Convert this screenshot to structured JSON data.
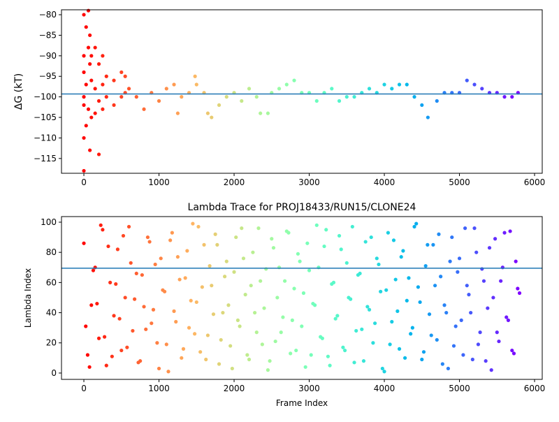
{
  "chart_data": [
    {
      "type": "scatter",
      "ylabel": "ΔG (kT)",
      "colormap": "rainbow_r",
      "hline": -99.3,
      "hline_color": "#1f77b4",
      "xlim": [
        -298,
        6102
      ],
      "ylim": [
        -118.6,
        -78.8
      ],
      "xticks": [
        0,
        1000,
        2000,
        3000,
        4000,
        5000,
        6000
      ],
      "yticks": [
        {
          "value": -80,
          "label": "−80"
        },
        {
          "value": -85,
          "label": "−85"
        },
        {
          "value": -90,
          "label": "−90"
        },
        {
          "value": -95,
          "label": "−95"
        },
        {
          "value": -100,
          "label": "−100"
        },
        {
          "value": -105,
          "label": "−105"
        },
        {
          "value": -110,
          "label": "−110"
        },
        {
          "value": -115,
          "label": "−115"
        }
      ],
      "series": [
        {
          "x": [
            0,
            0,
            0,
            0,
            0,
            0,
            0,
            30,
            30,
            30,
            60,
            60,
            60,
            80,
            80,
            80,
            100,
            100,
            100,
            150,
            150,
            150,
            200,
            200,
            200,
            250,
            250,
            250,
            300,
            300,
            400,
            400,
            500,
            500,
            550,
            550,
            600,
            700,
            800,
            900,
            1000,
            1100,
            1200,
            1250,
            1300,
            1400,
            1480,
            1500,
            1600,
            1650,
            1700,
            1800,
            1900,
            2000,
            2100,
            2200,
            2300,
            2350,
            2450,
            2500,
            2600,
            2700,
            2800,
            2900,
            3000,
            3100,
            3200,
            3300,
            3400,
            3500,
            3600,
            3700,
            3800,
            3900,
            4000,
            4100,
            4200,
            4300,
            4400,
            4500,
            4580,
            4700,
            4800,
            4900,
            5000,
            5100,
            5200,
            5300,
            5400,
            5500,
            5600,
            5700,
            5780
          ],
          "values": [
            -80,
            -90,
            -100,
            -110,
            -118,
            -94,
            -102,
            -83,
            -97,
            -107,
            -79,
            -88,
            -103,
            -85,
            -92,
            -113,
            -90,
            -96,
            -105,
            -88,
            -98,
            -104,
            -92,
            -101,
            -114,
            -90,
            -97,
            -103,
            -95,
            -100,
            -96,
            -102,
            -94,
            -100,
            -95,
            -99,
            -98,
            -100,
            -103,
            -99,
            -101,
            -98,
            -97,
            -104,
            -100,
            -99,
            -95,
            -97,
            -99,
            -104,
            -105,
            -102,
            -100,
            -99,
            -101,
            -98,
            -100,
            -104,
            -104,
            -99,
            -98,
            -97,
            -96,
            -99,
            -99,
            -101,
            -99,
            -98,
            -101,
            -100,
            -100,
            -99,
            -98,
            -99,
            -97,
            -98,
            -97,
            -97,
            -100,
            -102,
            -105,
            -101,
            -99,
            -99,
            -99,
            -96,
            -97,
            -98,
            -99,
            -99,
            -100,
            -100,
            -99
          ]
        }
      ]
    },
    {
      "type": "scatter",
      "title": "Lambda Trace for PROJ18433/RUN15/CLONE24",
      "xlabel": "Frame Index",
      "ylabel": "Lambda Index",
      "colormap": "rainbow_r",
      "hline": 69.5,
      "hline_color": "#1f77b4",
      "xlim": [
        -298,
        6102
      ],
      "ylim": [
        -4.2,
        103.7
      ],
      "xticks": [
        0,
        1000,
        2000,
        3000,
        4000,
        5000,
        6000
      ],
      "yticks": [
        0,
        20,
        40,
        60,
        80,
        100
      ],
      "series": [
        {
          "x": [
            0,
            50,
            100,
            150,
            200,
            250,
            300,
            350,
            400,
            450,
            500,
            550,
            600,
            650,
            700,
            750,
            800,
            850,
            900,
            950,
            1000,
            1050,
            1100,
            1150,
            1200,
            1250,
            1300,
            1350,
            1400,
            1450,
            1500,
            1550,
            1600,
            1650,
            1700,
            1750,
            1800,
            1850,
            1900,
            1950,
            2000,
            2050,
            2100,
            2150,
            2200,
            2250,
            2300,
            2350,
            2400,
            2450,
            2500,
            2550,
            2600,
            2650,
            2700,
            2750,
            2800,
            2850,
            2900,
            2950,
            3000,
            3050,
            3100,
            3150,
            3200,
            3250,
            3300,
            3350,
            3400,
            3450,
            3500,
            3550,
            3600,
            3650,
            3700,
            3750,
            3800,
            3850,
            3900,
            3950,
            4000,
            4050,
            4100,
            4150,
            4200,
            4250,
            4300,
            4350,
            4400,
            4450,
            4500,
            4550,
            4600,
            4650,
            4700,
            4750,
            4800,
            4850,
            4900,
            4950,
            5000,
            5050,
            5100,
            5150,
            5200,
            5250,
            5300,
            5350,
            5400,
            5450,
            5500,
            5550,
            5600,
            5650,
            5700,
            5750,
            5800
          ],
          "values": [
            86,
            12,
            45,
            70,
            23,
            95,
            5,
            60,
            38,
            82,
            15,
            50,
            97,
            28,
            66,
            8,
            44,
            90,
            33,
            72,
            3,
            55,
            19,
            88,
            41,
            77,
            10,
            63,
            30,
            99,
            47,
            14,
            85,
            25,
            58,
            92,
            6,
            40,
            74,
            18,
            67,
            35,
            96,
            52,
            9,
            80,
            27,
            61,
            43,
            2,
            89,
            21,
            70,
            37,
            94,
            13,
            56,
            79,
            31,
            4,
            68,
            46,
            98,
            24,
            84,
            11,
            59,
            36,
            91,
            17,
            73,
            49,
            7,
            65,
            29,
            87,
            42,
            20,
            76,
            54,
            1,
            93,
            34,
            62,
            16,
            81,
            48,
            26,
            97,
            57,
            9,
            71,
            39,
            85,
            22,
            64,
            45,
            3,
            90,
            31,
            76,
            12,
            58,
            40,
            96,
            19,
            69,
            8,
            83,
            50,
            27,
            61,
            93,
            35,
            15,
            74,
            53
          ]
        },
        {
          "x": [
            25,
            75,
            125,
            175,
            225,
            275,
            325,
            375,
            425,
            475,
            525,
            575,
            625,
            675,
            725,
            775,
            825,
            875,
            925,
            975,
            1025,
            1075,
            1125,
            1175,
            1225,
            1275,
            1325,
            1375,
            1425,
            1475,
            1525,
            1575,
            1625,
            1675,
            1725,
            1775,
            1825,
            1875,
            1925,
            1975,
            2025,
            2075,
            2125,
            2175,
            2225,
            2275,
            2325,
            2375,
            2425,
            2475,
            2525,
            2575,
            2625,
            2675,
            2725,
            2775,
            2825,
            2875,
            2925,
            2975,
            3025,
            3075,
            3125,
            3175,
            3225,
            3275,
            3325,
            3375,
            3425,
            3475,
            3525,
            3575,
            3625,
            3675,
            3725,
            3775,
            3825,
            3875,
            3925,
            3975,
            4025,
            4075,
            4125,
            4175,
            4225,
            4275,
            4325,
            4375,
            4425,
            4475,
            4525,
            4575,
            4625,
            4675,
            4725,
            4775,
            4825,
            4875,
            4925,
            4975,
            5025,
            5075,
            5125,
            5175,
            5225,
            5275,
            5325,
            5375,
            5425,
            5475,
            5525,
            5575,
            5625,
            5675,
            5725,
            5775
          ],
          "values": [
            31,
            4,
            68,
            46,
            98,
            24,
            84,
            11,
            59,
            36,
            91,
            17,
            73,
            49,
            7,
            65,
            29,
            87,
            42,
            20,
            76,
            54,
            1,
            93,
            34,
            62,
            16,
            81,
            48,
            26,
            97,
            57,
            9,
            71,
            39,
            85,
            22,
            64,
            45,
            3,
            90,
            31,
            76,
            12,
            58,
            40,
            96,
            19,
            69,
            8,
            83,
            50,
            27,
            61,
            93,
            35,
            15,
            74,
            53,
            86,
            12,
            45,
            70,
            23,
            95,
            5,
            60,
            38,
            82,
            15,
            50,
            97,
            28,
            66,
            8,
            44,
            90,
            33,
            72,
            3,
            55,
            19,
            88,
            41,
            77,
            10,
            63,
            30,
            99,
            47,
            14,
            85,
            25,
            58,
            92,
            6,
            40,
            74,
            18,
            67,
            35,
            96,
            52,
            9,
            80,
            27,
            61,
            43,
            2,
            89,
            21,
            70,
            37,
            94,
            13,
            56
          ]
        }
      ]
    }
  ]
}
